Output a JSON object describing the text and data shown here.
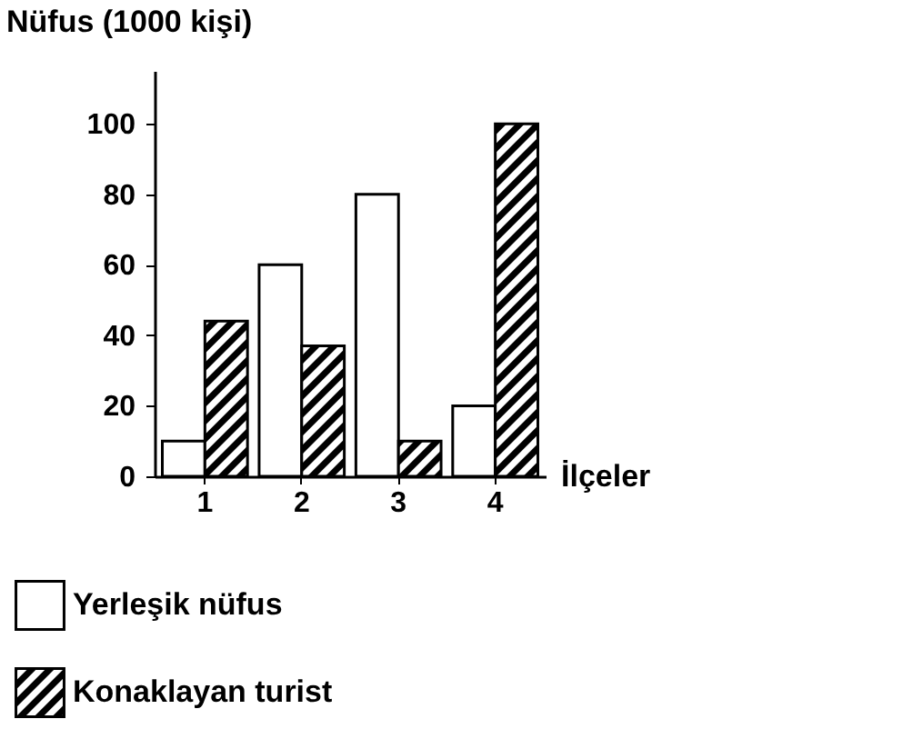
{
  "chart_data": {
    "type": "bar",
    "xlabel": "İlçeler",
    "ylabel": "Nüfus (1000 kişi)",
    "categories": [
      "1",
      "2",
      "3",
      "4"
    ],
    "series": [
      {
        "name": "Yerleşik nüfus",
        "color": "#ffffff",
        "values": [
          10,
          60,
          80,
          20
        ]
      },
      {
        "name": "Konaklayan turist",
        "color": "#000000",
        "values": [
          44,
          37,
          10,
          100
        ]
      }
    ],
    "ylim": [
      0,
      115
    ],
    "yticks": [
      0,
      20,
      40,
      60,
      80,
      100
    ],
    "grid": false,
    "legend": "bottom"
  }
}
